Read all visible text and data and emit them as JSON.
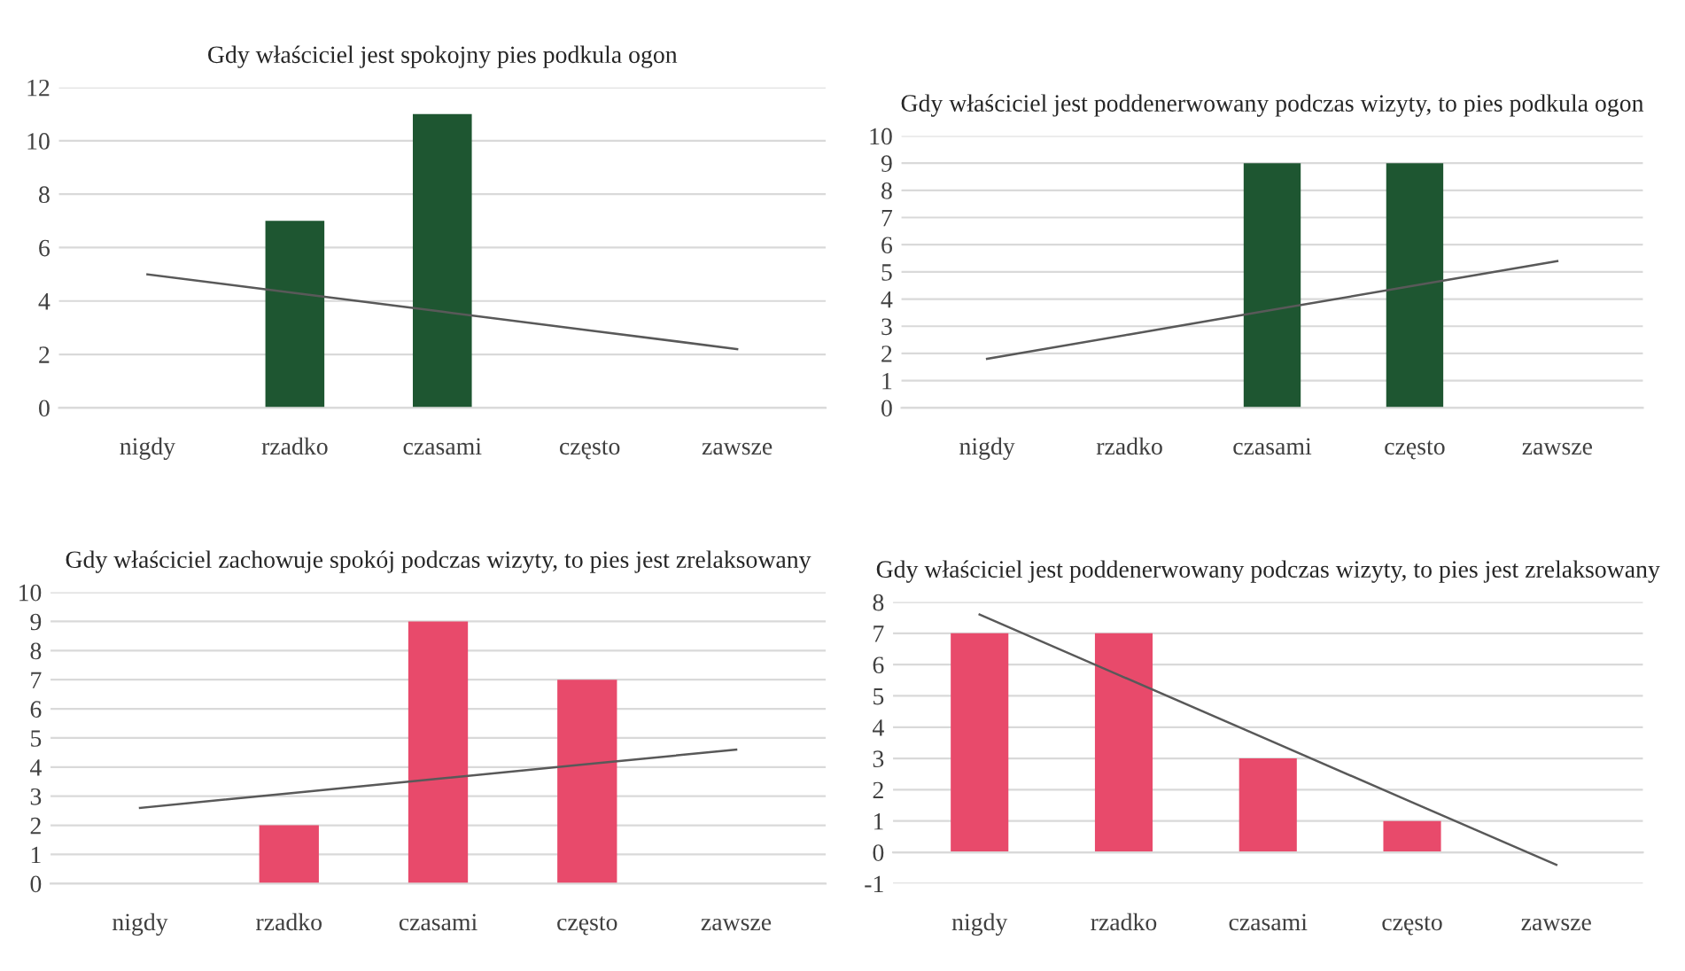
{
  "chart_data": [
    {
      "type": "bar",
      "title": "Gdy właściciel jest spokojny pies podkula ogon",
      "categories": [
        "nigdy",
        "rzadko",
        "czasami",
        "często",
        "zawsze"
      ],
      "series": [
        {
          "color": "#1e5631",
          "values": [
            0,
            7,
            11,
            0,
            0
          ]
        },
        {
          "type": "line",
          "color": "#595959",
          "values": [
            5.0,
            4.3,
            3.6,
            2.9,
            2.2
          ]
        }
      ],
      "ylim": [
        0,
        12
      ],
      "yticks": [
        0,
        2,
        4,
        6,
        8,
        10,
        12
      ],
      "grid": "y"
    },
    {
      "type": "bar",
      "title": "Gdy właściciel jest poddenerwowany podczas wizyty, to pies podkula ogon",
      "categories": [
        "nigdy",
        "rzadko",
        "czasami",
        "często",
        "zawsze"
      ],
      "series": [
        {
          "color": "#1e5631",
          "values": [
            0,
            0,
            9,
            9,
            0
          ]
        },
        {
          "type": "line",
          "color": "#595959",
          "values": [
            1.8,
            2.7,
            3.6,
            4.5,
            5.4
          ]
        }
      ],
      "ylim": [
        0,
        10
      ],
      "yticks": [
        0,
        1,
        2,
        3,
        4,
        5,
        6,
        7,
        8,
        9,
        10
      ],
      "grid": "y"
    },
    {
      "type": "bar",
      "title": "Gdy właściciel zachowuje spokój podczas wizyty, to pies jest zrelaksowany",
      "categories": [
        "nigdy",
        "rzadko",
        "czasami",
        "często",
        "zawsze"
      ],
      "series": [
        {
          "color": "#e84a6b",
          "values": [
            0,
            2,
            9,
            7,
            0
          ]
        },
        {
          "type": "line",
          "color": "#595959",
          "values": [
            2.6,
            3.1,
            3.6,
            4.1,
            4.6
          ]
        }
      ],
      "ylim": [
        0,
        10
      ],
      "yticks": [
        0,
        1,
        2,
        3,
        4,
        5,
        6,
        7,
        8,
        9,
        10
      ],
      "grid": "y"
    },
    {
      "type": "bar",
      "title": "Gdy właściciel jest poddenerwowany podczas wizyty, to pies jest zrelaksowany",
      "categories": [
        "nigdy",
        "rzadko",
        "czasami",
        "często",
        "zawsze"
      ],
      "series": [
        {
          "color": "#e84a6b",
          "values": [
            7,
            7,
            3,
            1,
            0
          ]
        },
        {
          "type": "line",
          "color": "#595959",
          "values": [
            7.6,
            5.6,
            3.6,
            1.6,
            -0.4
          ]
        }
      ],
      "ylim": [
        -1,
        8
      ],
      "yticks": [
        -1,
        0,
        1,
        2,
        3,
        4,
        5,
        6,
        7,
        8
      ],
      "grid": "y"
    }
  ]
}
